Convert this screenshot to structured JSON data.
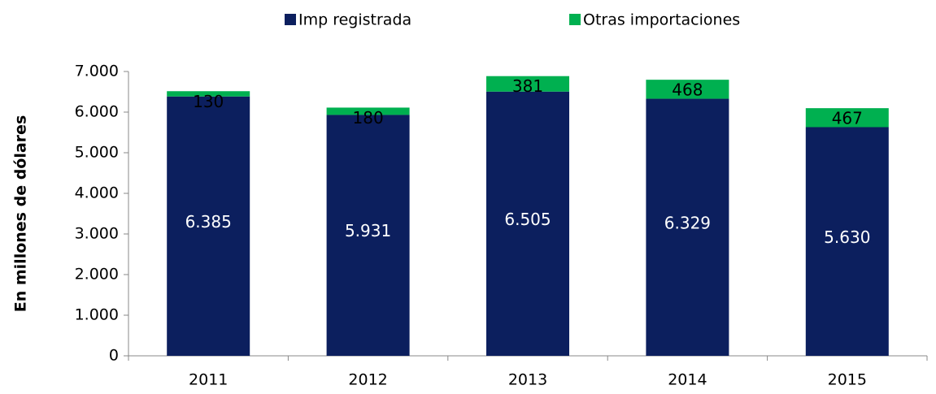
{
  "chart_data": {
    "type": "stacked_bar",
    "y_label": "En millones de  dólares",
    "categories": [
      "2011",
      "2012",
      "2013",
      "2014",
      "2015"
    ],
    "series": [
      {
        "name": "Imp registrada",
        "color": "#0c1f5e",
        "values": [
          6385,
          5931,
          6505,
          6329,
          5630
        ],
        "value_labels": [
          "6.385",
          "5.931",
          "6.505",
          "6.329",
          "5.630"
        ]
      },
      {
        "name": "Otras importaciones",
        "color": "#00b050",
        "values": [
          130,
          180,
          381,
          468,
          467
        ]
      }
    ],
    "ylim": [
      0,
      7000
    ],
    "yticks": [
      0,
      {
        "value": 1000,
        "label": "1.000"
      },
      {
        "value": 2000,
        "label": "2.000"
      },
      {
        "value": 3000,
        "label": "3.000"
      },
      {
        "value": 4000,
        "label": "4.000"
      },
      {
        "value": 5000,
        "label": "5.000"
      },
      {
        "value": 6000,
        "label": "6.000"
      },
      {
        "value": 7000,
        "label": "7.000"
      }
    ],
    "legend": "top"
  }
}
